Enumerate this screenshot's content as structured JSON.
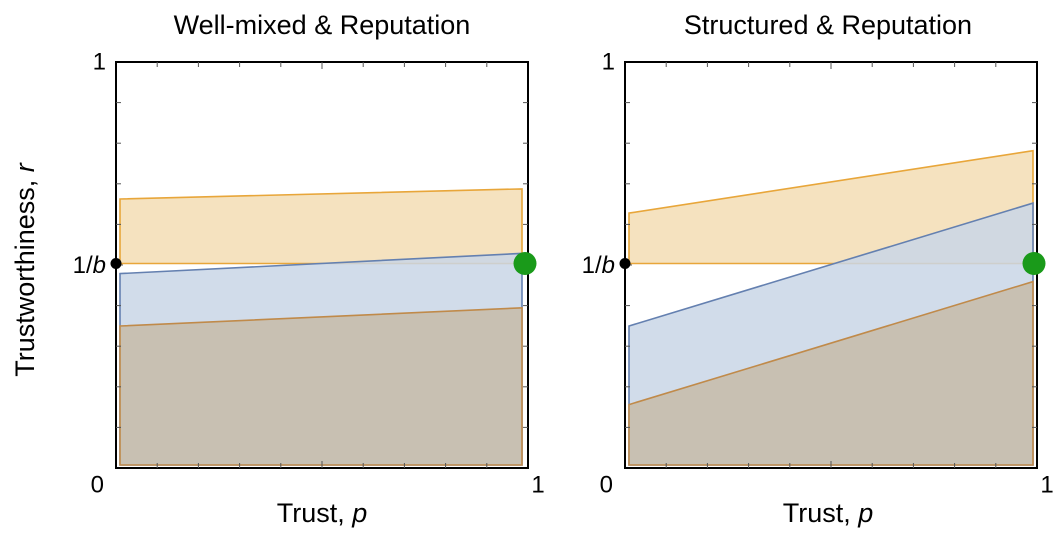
{
  "ylabel_text": "Trustworthiness, ",
  "ylabel_var": "r",
  "colors": {
    "orange": "#e8a63a",
    "orange_fill": "#f3ddb4",
    "blue": "#6480b0",
    "blue_fill": "#c9d6e6",
    "brown": "#c08a4a",
    "brown_fill": "#c7bba8",
    "green": "#1a9a1a",
    "black": "#000000"
  },
  "chart_data": [
    {
      "type": "area",
      "title": "Well-mixed & Reputation",
      "xlabel_text": "Trust, ",
      "xlabel_var": "p",
      "xlim": [
        0,
        1
      ],
      "ylim": [
        0,
        1
      ],
      "xticks": {
        "min_label": "0",
        "max_label": "1"
      },
      "yticks": {
        "min_label": "0",
        "max_label": "1",
        "mid_prefix": "1/",
        "mid_var": "b"
      },
      "one_over_b": 0.5,
      "series": [
        {
          "color": "orange",
          "x": [
            0,
            1
          ],
          "lower": [
            0.5,
            0.5
          ],
          "upper": [
            0.66,
            0.685
          ]
        },
        {
          "color": "blue",
          "x": [
            0,
            1
          ],
          "lower": [
            0.0,
            0.0
          ],
          "upper": [
            0.475,
            0.525
          ]
        },
        {
          "color": "brown",
          "x": [
            0,
            1
          ],
          "lower": [
            0.0,
            0.0
          ],
          "upper": [
            0.345,
            0.39
          ]
        }
      ],
      "markers": [
        {
          "x": 0,
          "y": 0.5,
          "color": "black",
          "size": "small"
        },
        {
          "x": 1,
          "y": 0.5,
          "color": "green",
          "size": "large"
        }
      ]
    },
    {
      "type": "area",
      "title": "Structured & Reputation",
      "xlabel_text": "Trust, ",
      "xlabel_var": "p",
      "xlim": [
        0,
        1
      ],
      "ylim": [
        0,
        1
      ],
      "xticks": {
        "min_label": "0",
        "max_label": "1"
      },
      "yticks": {
        "min_label": "0",
        "max_label": "1",
        "mid_prefix": "1/",
        "mid_var": "b"
      },
      "one_over_b": 0.5,
      "series": [
        {
          "color": "orange",
          "x": [
            0,
            1
          ],
          "lower": [
            0.5,
            0.5
          ],
          "upper": [
            0.625,
            0.78
          ]
        },
        {
          "color": "blue",
          "x": [
            0,
            1
          ],
          "lower": [
            0.0,
            0.0
          ],
          "upper": [
            0.345,
            0.65
          ]
        },
        {
          "color": "brown",
          "x": [
            0,
            1
          ],
          "lower": [
            0.0,
            0.0
          ],
          "upper": [
            0.15,
            0.455
          ]
        }
      ],
      "markers": [
        {
          "x": 0,
          "y": 0.5,
          "color": "black",
          "size": "small"
        },
        {
          "x": 1,
          "y": 0.5,
          "color": "green",
          "size": "large"
        }
      ]
    }
  ]
}
